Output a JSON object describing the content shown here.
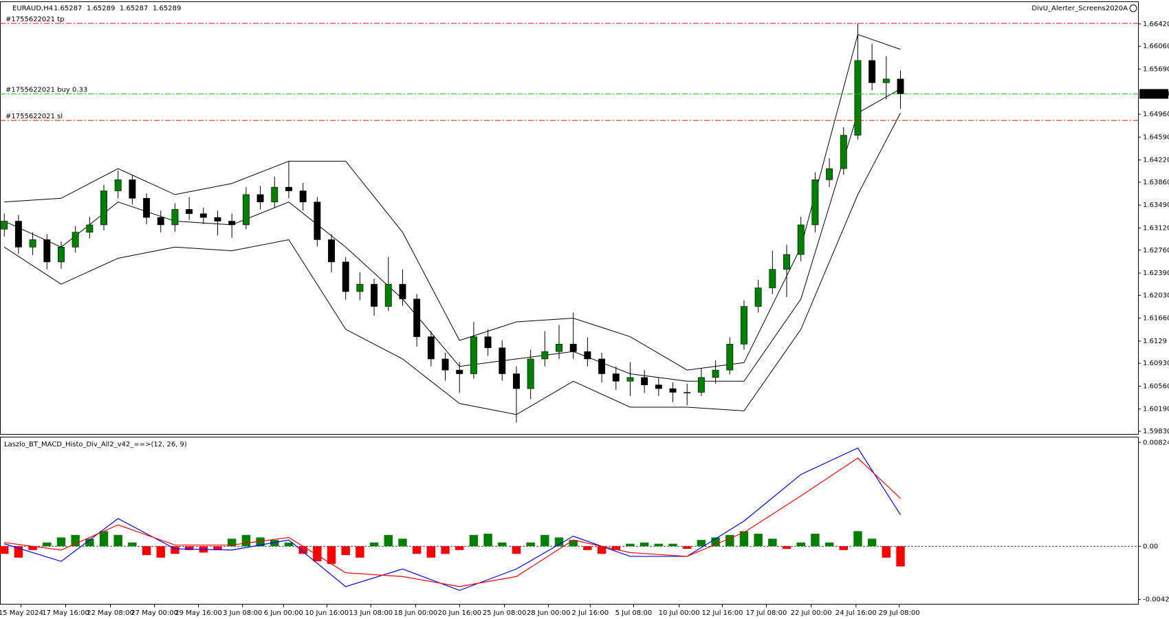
{
  "chart_data": [
    {
      "type": "candlestick",
      "title": "EURAUD,H4",
      "header_prices": [
        1.65287,
        1.65289,
        1.65287,
        1.65289
      ],
      "indicator_label": "DivU_Alerter_Screens2020A",
      "xlim": [
        -0.3,
        79.7
      ],
      "xticks": [
        {
          "value": 1.17,
          "label": "15 May 2024"
        },
        {
          "value": 4.32,
          "label": "17 May 16:00"
        },
        {
          "value": 7.46,
          "label": "22 May 08:00"
        },
        {
          "value": 10.56,
          "label": "27 May 00:00"
        },
        {
          "value": 13.65,
          "label": "29 May 16:00"
        },
        {
          "value": 16.75,
          "label": "3 Jun 08:00"
        },
        {
          "value": 19.63,
          "label": "6 Jun 00:00"
        },
        {
          "value": 22.68,
          "label": "10 Jun 16:00"
        },
        {
          "value": 25.77,
          "label": "13 Jun 08:00"
        },
        {
          "value": 28.92,
          "label": "18 Jun 00:00"
        },
        {
          "value": 32.01,
          "label": "20 Jun 16:00"
        },
        {
          "value": 35.16,
          "label": "25 Jun 08:00"
        },
        {
          "value": 38.26,
          "label": "28 Jun 00:00"
        },
        {
          "value": 41.19,
          "label": "2 Jul 16:00"
        },
        {
          "value": 44.24,
          "label": "5 Jul 08:00"
        },
        {
          "value": 47.44,
          "label": "10 Jul 00:00"
        },
        {
          "value": 50.48,
          "label": "12 Jul 16:00"
        },
        {
          "value": 53.57,
          "label": "17 Jul 08:00"
        },
        {
          "value": 56.72,
          "label": "22 Jul 00:00"
        },
        {
          "value": 59.87,
          "label": "24 Jul 16:00"
        },
        {
          "value": 62.91,
          "label": "29 Jul 08:00"
        }
      ],
      "ylim": [
        1.59786,
        1.66775
      ],
      "yticks": [
        {
          "value": 1.5983,
          "label": "1.59830"
        },
        {
          "value": 1.6019,
          "label": "1.60190"
        },
        {
          "value": 1.6056,
          "label": "1.60560"
        },
        {
          "value": 1.6093,
          "label": "1.60930"
        },
        1.6129,
        {
          "value": 1.6166,
          "label": "1.61660"
        },
        {
          "value": 1.6203,
          "label": "1.62030"
        },
        {
          "value": 1.6239,
          "label": "1.62390"
        },
        {
          "value": 1.6276,
          "label": "1.62760"
        },
        {
          "value": 1.6312,
          "label": "1.63120"
        },
        {
          "value": 1.6349,
          "label": "1.63490"
        },
        {
          "value": 1.6386,
          "label": "1.63860"
        },
        {
          "value": 1.6422,
          "label": "1.64220"
        },
        {
          "value": 1.6459,
          "label": "1.64590"
        },
        {
          "value": 1.6496,
          "label": "1.64960"
        },
        {
          "value": 1.6569,
          "label": "1.65690"
        },
        {
          "value": 1.6606,
          "label": "1.66060"
        },
        {
          "value": 1.6642,
          "label": "1.66420"
        }
      ],
      "up_color": "#008000",
      "down_color": "#000000",
      "open": [
        1.631,
        1.6323,
        1.6281,
        1.6293,
        1.6257,
        1.6281,
        1.6305,
        1.6317,
        1.6372,
        1.639,
        1.636,
        1.6329,
        1.6317,
        1.6342,
        1.6335,
        1.6329,
        1.6323,
        1.6317,
        1.6366,
        1.6354,
        1.6378,
        1.6372,
        1.6354,
        1.6293,
        1.6257,
        1.6209,
        1.6221,
        1.6185,
        1.6221,
        1.6197,
        1.6136,
        1.61,
        1.6082,
        1.6076,
        1.6136,
        1.6118,
        1.6076,
        1.6052,
        1.61,
        1.6112,
        1.6124,
        1.6112,
        1.61,
        1.6076,
        1.6064,
        1.607,
        1.6058,
        1.6052,
        1.6046,
        1.6046,
        1.607,
        1.6082,
        1.6124,
        1.6185,
        1.6215,
        1.6245,
        1.6269,
        1.6317,
        1.639,
        1.6408,
        1.6462,
        1.6583,
        1.6547,
        1.6553
      ],
      "high": [
        1.6335,
        1.6333,
        1.6305,
        1.6302,
        1.629,
        1.6315,
        1.633,
        1.6382,
        1.6405,
        1.6398,
        1.6368,
        1.634,
        1.6352,
        1.6362,
        1.6345,
        1.634,
        1.6335,
        1.6378,
        1.638,
        1.6395,
        1.642,
        1.6385,
        1.6362,
        1.6302,
        1.6265,
        1.624,
        1.623,
        1.6265,
        1.6245,
        1.6205,
        1.6145,
        1.611,
        1.6095,
        1.616,
        1.6148,
        1.613,
        1.6088,
        1.6115,
        1.6145,
        1.6155,
        1.6175,
        1.6135,
        1.611,
        1.6088,
        1.6095,
        1.6082,
        1.607,
        1.6062,
        1.606,
        1.6085,
        1.6098,
        1.6135,
        1.6195,
        1.6228,
        1.6275,
        1.6285,
        1.633,
        1.6402,
        1.6425,
        1.6475,
        1.6643,
        1.661,
        1.659,
        1.6567
      ],
      "low": [
        1.6298,
        1.627,
        1.6268,
        1.6245,
        1.6246,
        1.6272,
        1.6295,
        1.6308,
        1.636,
        1.635,
        1.6318,
        1.6305,
        1.6306,
        1.6325,
        1.6318,
        1.63,
        1.6296,
        1.631,
        1.6342,
        1.6345,
        1.636,
        1.634,
        1.6282,
        1.624,
        1.6196,
        1.6195,
        1.617,
        1.6178,
        1.6186,
        1.612,
        1.6088,
        1.6065,
        1.6045,
        1.6068,
        1.6105,
        1.6065,
        1.5997,
        1.6035,
        1.6088,
        1.61,
        1.61,
        1.6088,
        1.6062,
        1.605,
        1.604,
        1.6045,
        1.604,
        1.603,
        1.6025,
        1.604,
        1.606,
        1.6075,
        1.6115,
        1.6175,
        1.6205,
        1.62,
        1.6258,
        1.6305,
        1.6378,
        1.6398,
        1.6455,
        1.6535,
        1.652,
        1.6505
      ],
      "close": [
        1.6323,
        1.6281,
        1.6293,
        1.6257,
        1.6281,
        1.6305,
        1.6317,
        1.6372,
        1.639,
        1.636,
        1.6329,
        1.6317,
        1.6342,
        1.6335,
        1.6329,
        1.6323,
        1.6317,
        1.6366,
        1.6354,
        1.6378,
        1.6372,
        1.6354,
        1.6293,
        1.6257,
        1.6209,
        1.6221,
        1.6185,
        1.6221,
        1.6197,
        1.6136,
        1.61,
        1.6082,
        1.6076,
        1.6136,
        1.6118,
        1.6076,
        1.6052,
        1.61,
        1.6112,
        1.6124,
        1.6112,
        1.61,
        1.6076,
        1.6064,
        1.607,
        1.6058,
        1.6052,
        1.6046,
        1.6046,
        1.607,
        1.6082,
        1.6124,
        1.6185,
        1.6215,
        1.6245,
        1.6269,
        1.6317,
        1.639,
        1.6408,
        1.6462,
        1.6583,
        1.6547,
        1.6553,
        1.65289
      ],
      "band_x": [
        0,
        4,
        8,
        12,
        16,
        20,
        24,
        28,
        32,
        36,
        40,
        44,
        48,
        52,
        56,
        60,
        63
      ],
      "bands": [
        {
          "color": "#000000",
          "values": [
            1.6354,
            1.636,
            1.6408,
            1.6366,
            1.6384,
            1.642,
            1.642,
            1.6305,
            1.613,
            1.616,
            1.6166,
            1.6136,
            1.6082,
            1.6094,
            1.6281,
            1.6625,
            1.6601
          ]
        },
        {
          "color": "#000000",
          "values": [
            1.6323,
            1.6281,
            1.6354,
            1.6323,
            1.6317,
            1.6354,
            1.6281,
            1.6197,
            1.6088,
            1.61,
            1.6112,
            1.6076,
            1.6064,
            1.6064,
            1.6197,
            1.6498,
            1.6537
          ]
        },
        {
          "color": "#000000",
          "values": [
            1.6281,
            1.6221,
            1.6263,
            1.6281,
            1.6275,
            1.6293,
            1.6148,
            1.61,
            1.6028,
            1.601,
            1.6064,
            1.6022,
            1.6022,
            1.6016,
            1.6148,
            1.6366,
            1.6498
          ]
        }
      ],
      "levels": [
        {
          "label": "#1755622021 tp",
          "value": 1.6643,
          "color": "#ff0000"
        },
        {
          "label": "#1755622021 buy 0.33",
          "value": 1.65289,
          "color": "#00cc00"
        },
        {
          "label": "#1755622021 sl",
          "value": 1.6486,
          "color": "#ff0000"
        }
      ]
    },
    {
      "type": "macd",
      "title": "Laszlo_BT_MACD_Histo_Div_All2_v42_==>(12, 26, 9)",
      "xlim": [
        -0.3,
        79.7
      ],
      "ylim": [
        -0.00457,
        0.00864
      ],
      "yticks": [
        0.008242,
        {
          "value": 0,
          "label": "0.00"
        },
        -0.004224
      ],
      "positive_color": "#008000",
      "negative_color": "#ff0000",
      "histogram": [
        -0.0006,
        -0.0009,
        -0.0003,
        0.0003,
        0.0007,
        0.0009,
        0.0006,
        0.0012,
        0.0009,
        0.0003,
        -0.0007,
        -0.0009,
        -0.0006,
        -0.0003,
        -0.0005,
        -0.0003,
        0.0006,
        0.0009,
        0.0007,
        0.0005,
        0.0003,
        -0.0006,
        -0.0012,
        -0.0014,
        -0.0007,
        -0.0009,
        0.0003,
        0.0009,
        0.0006,
        -0.0006,
        -0.0009,
        -0.0006,
        -0.0003,
        0.0009,
        0.001,
        0.0003,
        -0.0006,
        0.0003,
        0.0009,
        0.0007,
        0.0005,
        -0.0003,
        -0.0006,
        -0.0003,
        0.0002,
        0.0003,
        0.0002,
        0.0002,
        -0.0002,
        0.0005,
        0.0007,
        0.0009,
        0.0012,
        0.001,
        0.0006,
        -0.0002,
        0.0003,
        0.001,
        0.0003,
        -0.0003,
        0.0012,
        0.0006,
        -0.0009,
        -0.0016
      ],
      "line_x": [
        0,
        4,
        8,
        12,
        16,
        20,
        24,
        28,
        32,
        36,
        40,
        44,
        48,
        52,
        56,
        60,
        63
      ],
      "series": [
        {
          "color": "#0000ff",
          "values": [
            0.0002,
            -0.0012,
            0.0022,
            -0.0002,
            -0.0003,
            0.0005,
            -0.0032,
            -0.0018,
            -0.0035,
            -0.0018,
            0.0008,
            -0.0008,
            -0.0008,
            0.002,
            0.0057,
            0.0078,
            0.0025
          ]
        },
        {
          "color": "#ff0000",
          "values": [
            0.0003,
            -0.0003,
            0.0017,
            0.0001,
            0.0001,
            0.0007,
            -0.0021,
            -0.0024,
            -0.0032,
            -0.0024,
            0.0005,
            -0.0005,
            -0.0008,
            0.0011,
            0.004,
            0.007,
            0.0038
          ]
        }
      ]
    }
  ]
}
